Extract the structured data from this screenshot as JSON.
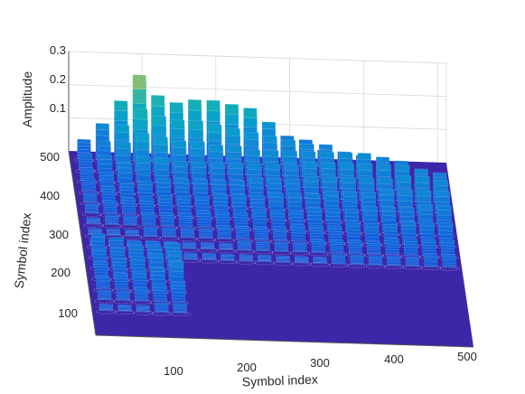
{
  "chart_data": {
    "type": "surface3d",
    "title": "",
    "xlabel": "Symbol index",
    "ylabel": "Symbol index",
    "zlabel": "Amplitude",
    "x_ticks": [
      "100",
      "200",
      "300",
      "400",
      "500"
    ],
    "y_ticks": [
      "100",
      "200",
      "300",
      "400",
      "500"
    ],
    "z_ticks": [
      "0.1",
      "0.2",
      "0.3"
    ],
    "xlim": [
      1,
      512
    ],
    "ylim": [
      1,
      512
    ],
    "zlim": [
      0,
      0.3
    ],
    "grid": true,
    "colormap": "parula",
    "block_grid": {
      "columns": [
        20,
        45,
        70,
        95,
        120,
        145,
        170,
        195,
        220,
        245,
        270,
        295,
        320,
        345,
        370,
        395,
        420,
        445,
        470,
        495
      ],
      "rows": [
        490,
        460,
        430,
        400,
        370,
        340,
        310,
        280,
        250,
        220,
        190,
        160,
        130,
        100,
        70
      ]
    },
    "blocks": [
      {
        "x": 20,
        "y": 490,
        "z": 0.06
      },
      {
        "x": 45,
        "y": 490,
        "z": 0.11
      },
      {
        "x": 70,
        "y": 490,
        "z": 0.18
      },
      {
        "x": 95,
        "y": 490,
        "z": 0.26
      },
      {
        "x": 120,
        "y": 490,
        "z": 0.2
      },
      {
        "x": 145,
        "y": 490,
        "z": 0.18
      },
      {
        "x": 170,
        "y": 490,
        "z": 0.19
      },
      {
        "x": 195,
        "y": 490,
        "z": 0.19
      },
      {
        "x": 220,
        "y": 490,
        "z": 0.18
      },
      {
        "x": 245,
        "y": 490,
        "z": 0.17
      },
      {
        "x": 270,
        "y": 490,
        "z": 0.13
      },
      {
        "x": 295,
        "y": 490,
        "z": 0.09
      },
      {
        "x": 320,
        "y": 490,
        "z": 0.08
      },
      {
        "x": 345,
        "y": 490,
        "z": 0.05
      },
      {
        "x": 20,
        "y": 460,
        "z": 0.05
      },
      {
        "x": 45,
        "y": 460,
        "z": 0.09
      },
      {
        "x": 70,
        "y": 460,
        "z": 0.14
      },
      {
        "x": 95,
        "y": 460,
        "z": 0.19
      },
      {
        "x": 120,
        "y": 460,
        "z": 0.17
      },
      {
        "x": 145,
        "y": 460,
        "z": 0.16
      },
      {
        "x": 170,
        "y": 460,
        "z": 0.16
      },
      {
        "x": 195,
        "y": 460,
        "z": 0.15
      },
      {
        "x": 220,
        "y": 460,
        "z": 0.14
      },
      {
        "x": 245,
        "y": 460,
        "z": 0.13
      },
      {
        "x": 270,
        "y": 460,
        "z": 0.12
      },
      {
        "x": 295,
        "y": 460,
        "z": 0.11
      },
      {
        "x": 320,
        "y": 460,
        "z": 0.1
      },
      {
        "x": 345,
        "y": 460,
        "z": 0.1
      },
      {
        "x": 370,
        "y": 460,
        "z": 0.08
      },
      {
        "x": 395,
        "y": 460,
        "z": 0.07
      },
      {
        "x": 20,
        "y": 430,
        "z": 0.04
      },
      {
        "x": 45,
        "y": 430,
        "z": 0.08
      },
      {
        "x": 70,
        "y": 430,
        "z": 0.12
      },
      {
        "x": 95,
        "y": 430,
        "z": 0.15
      },
      {
        "x": 120,
        "y": 430,
        "z": 0.14
      },
      {
        "x": 145,
        "y": 430,
        "z": 0.13
      },
      {
        "x": 170,
        "y": 430,
        "z": 0.13
      },
      {
        "x": 195,
        "y": 430,
        "z": 0.12
      },
      {
        "x": 220,
        "y": 430,
        "z": 0.12
      },
      {
        "x": 245,
        "y": 430,
        "z": 0.11
      },
      {
        "x": 270,
        "y": 430,
        "z": 0.11
      },
      {
        "x": 295,
        "y": 430,
        "z": 0.11
      },
      {
        "x": 320,
        "y": 430,
        "z": 0.11
      },
      {
        "x": 345,
        "y": 430,
        "z": 0.11
      },
      {
        "x": 370,
        "y": 430,
        "z": 0.11
      },
      {
        "x": 395,
        "y": 430,
        "z": 0.11
      },
      {
        "x": 420,
        "y": 430,
        "z": 0.1
      },
      {
        "x": 445,
        "y": 430,
        "z": 0.09
      },
      {
        "x": 20,
        "y": 400,
        "z": 0.04
      },
      {
        "x": 45,
        "y": 400,
        "z": 0.06
      },
      {
        "x": 70,
        "y": 400,
        "z": 0.09
      },
      {
        "x": 95,
        "y": 400,
        "z": 0.11
      },
      {
        "x": 120,
        "y": 400,
        "z": 0.11
      },
      {
        "x": 145,
        "y": 400,
        "z": 0.1
      },
      {
        "x": 170,
        "y": 400,
        "z": 0.1
      },
      {
        "x": 195,
        "y": 400,
        "z": 0.1
      },
      {
        "x": 220,
        "y": 400,
        "z": 0.1
      },
      {
        "x": 245,
        "y": 400,
        "z": 0.1
      },
      {
        "x": 270,
        "y": 400,
        "z": 0.1
      },
      {
        "x": 295,
        "y": 400,
        "z": 0.1
      },
      {
        "x": 320,
        "y": 400,
        "z": 0.11
      },
      {
        "x": 345,
        "y": 400,
        "z": 0.11
      },
      {
        "x": 370,
        "y": 400,
        "z": 0.11
      },
      {
        "x": 395,
        "y": 400,
        "z": 0.11
      },
      {
        "x": 420,
        "y": 400,
        "z": 0.11
      },
      {
        "x": 445,
        "y": 400,
        "z": 0.11
      },
      {
        "x": 470,
        "y": 400,
        "z": 0.1
      },
      {
        "x": 495,
        "y": 400,
        "z": 0.09
      },
      {
        "x": 20,
        "y": 370,
        "z": 0.03
      },
      {
        "x": 45,
        "y": 370,
        "z": 0.05
      },
      {
        "x": 70,
        "y": 370,
        "z": 0.06
      },
      {
        "x": 95,
        "y": 370,
        "z": 0.07
      },
      {
        "x": 120,
        "y": 370,
        "z": 0.08
      },
      {
        "x": 145,
        "y": 370,
        "z": 0.08
      },
      {
        "x": 170,
        "y": 370,
        "z": 0.08
      },
      {
        "x": 195,
        "y": 370,
        "z": 0.08
      },
      {
        "x": 220,
        "y": 370,
        "z": 0.08
      },
      {
        "x": 245,
        "y": 370,
        "z": 0.09
      },
      {
        "x": 270,
        "y": 370,
        "z": 0.09
      },
      {
        "x": 295,
        "y": 370,
        "z": 0.09
      },
      {
        "x": 320,
        "y": 370,
        "z": 0.1
      },
      {
        "x": 345,
        "y": 370,
        "z": 0.1
      },
      {
        "x": 370,
        "y": 370,
        "z": 0.1
      },
      {
        "x": 395,
        "y": 370,
        "z": 0.1
      },
      {
        "x": 420,
        "y": 370,
        "z": 0.1
      },
      {
        "x": 445,
        "y": 370,
        "z": 0.11
      },
      {
        "x": 470,
        "y": 370,
        "z": 0.11
      },
      {
        "x": 495,
        "y": 370,
        "z": 0.1
      },
      {
        "x": 20,
        "y": 340,
        "z": 0.03
      },
      {
        "x": 45,
        "y": 340,
        "z": 0.04
      },
      {
        "x": 70,
        "y": 340,
        "z": 0.05
      },
      {
        "x": 95,
        "y": 340,
        "z": 0.05
      },
      {
        "x": 120,
        "y": 340,
        "z": 0.06
      },
      {
        "x": 145,
        "y": 340,
        "z": 0.06
      },
      {
        "x": 170,
        "y": 340,
        "z": 0.06
      },
      {
        "x": 195,
        "y": 340,
        "z": 0.07
      },
      {
        "x": 220,
        "y": 340,
        "z": 0.07
      },
      {
        "x": 245,
        "y": 340,
        "z": 0.07
      },
      {
        "x": 270,
        "y": 340,
        "z": 0.08
      },
      {
        "x": 295,
        "y": 340,
        "z": 0.08
      },
      {
        "x": 320,
        "y": 340,
        "z": 0.08
      },
      {
        "x": 345,
        "y": 340,
        "z": 0.09
      },
      {
        "x": 370,
        "y": 340,
        "z": 0.09
      },
      {
        "x": 395,
        "y": 340,
        "z": 0.09
      },
      {
        "x": 420,
        "y": 340,
        "z": 0.1
      },
      {
        "x": 445,
        "y": 340,
        "z": 0.1
      },
      {
        "x": 470,
        "y": 340,
        "z": 0.1
      },
      {
        "x": 495,
        "y": 340,
        "z": 0.1
      },
      {
        "x": 20,
        "y": 310,
        "z": 0.02
      },
      {
        "x": 45,
        "y": 310,
        "z": 0.03
      },
      {
        "x": 70,
        "y": 310,
        "z": 0.03
      },
      {
        "x": 95,
        "y": 310,
        "z": 0.04
      },
      {
        "x": 120,
        "y": 310,
        "z": 0.04
      },
      {
        "x": 145,
        "y": 310,
        "z": 0.04
      },
      {
        "x": 170,
        "y": 310,
        "z": 0.05
      },
      {
        "x": 195,
        "y": 310,
        "z": 0.05
      },
      {
        "x": 220,
        "y": 310,
        "z": 0.05
      },
      {
        "x": 245,
        "y": 310,
        "z": 0.06
      },
      {
        "x": 270,
        "y": 310,
        "z": 0.06
      },
      {
        "x": 295,
        "y": 310,
        "z": 0.06
      },
      {
        "x": 320,
        "y": 310,
        "z": 0.07
      },
      {
        "x": 345,
        "y": 310,
        "z": 0.07
      },
      {
        "x": 370,
        "y": 310,
        "z": 0.07
      },
      {
        "x": 395,
        "y": 310,
        "z": 0.08
      },
      {
        "x": 420,
        "y": 310,
        "z": 0.08
      },
      {
        "x": 445,
        "y": 310,
        "z": 0.08
      },
      {
        "x": 470,
        "y": 310,
        "z": 0.09
      },
      {
        "x": 495,
        "y": 310,
        "z": 0.09
      },
      {
        "x": 20,
        "y": 280,
        "z": 0.02
      },
      {
        "x": 45,
        "y": 280,
        "z": 0.02
      },
      {
        "x": 70,
        "y": 280,
        "z": 0.02
      },
      {
        "x": 95,
        "y": 280,
        "z": 0.03
      },
      {
        "x": 120,
        "y": 280,
        "z": 0.03
      },
      {
        "x": 145,
        "y": 280,
        "z": 0.03
      },
      {
        "x": 170,
        "y": 280,
        "z": 0.03
      },
      {
        "x": 195,
        "y": 280,
        "z": 0.04
      },
      {
        "x": 220,
        "y": 280,
        "z": 0.04
      },
      {
        "x": 245,
        "y": 280,
        "z": 0.04
      },
      {
        "x": 270,
        "y": 280,
        "z": 0.04
      },
      {
        "x": 295,
        "y": 280,
        "z": 0.05
      },
      {
        "x": 320,
        "y": 280,
        "z": 0.05
      },
      {
        "x": 345,
        "y": 280,
        "z": 0.05
      },
      {
        "x": 370,
        "y": 280,
        "z": 0.06
      },
      {
        "x": 395,
        "y": 280,
        "z": 0.06
      },
      {
        "x": 420,
        "y": 280,
        "z": 0.06
      },
      {
        "x": 445,
        "y": 280,
        "z": 0.07
      },
      {
        "x": 470,
        "y": 280,
        "z": 0.07
      },
      {
        "x": 495,
        "y": 280,
        "z": 0.07
      },
      {
        "x": 20,
        "y": 250,
        "z": 0.02
      },
      {
        "x": 45,
        "y": 250,
        "z": 0.02
      },
      {
        "x": 70,
        "y": 250,
        "z": 0.02
      },
      {
        "x": 95,
        "y": 250,
        "z": 0.02
      },
      {
        "x": 120,
        "y": 250,
        "z": 0.02
      },
      {
        "x": 145,
        "y": 250,
        "z": 0.02
      },
      {
        "x": 170,
        "y": 250,
        "z": 0.02
      },
      {
        "x": 195,
        "y": 250,
        "z": 0.02
      },
      {
        "x": 220,
        "y": 250,
        "z": 0.03
      },
      {
        "x": 245,
        "y": 250,
        "z": 0.03
      },
      {
        "x": 270,
        "y": 250,
        "z": 0.03
      },
      {
        "x": 295,
        "y": 250,
        "z": 0.03
      },
      {
        "x": 320,
        "y": 250,
        "z": 0.04
      },
      {
        "x": 345,
        "y": 250,
        "z": 0.04
      },
      {
        "x": 370,
        "y": 250,
        "z": 0.04
      },
      {
        "x": 395,
        "y": 250,
        "z": 0.04
      },
      {
        "x": 420,
        "y": 250,
        "z": 0.05
      },
      {
        "x": 445,
        "y": 250,
        "z": 0.05
      },
      {
        "x": 470,
        "y": 250,
        "z": 0.05
      },
      {
        "x": 495,
        "y": 250,
        "z": 0.05
      },
      {
        "x": 20,
        "y": 220,
        "z": 0.07
      },
      {
        "x": 45,
        "y": 220,
        "z": 0.06
      },
      {
        "x": 70,
        "y": 220,
        "z": 0.05
      },
      {
        "x": 95,
        "y": 220,
        "z": 0.05
      },
      {
        "x": 120,
        "y": 220,
        "z": 0.05
      },
      {
        "x": 145,
        "y": 220,
        "z": 0.02
      },
      {
        "x": 170,
        "y": 220,
        "z": 0.02
      },
      {
        "x": 195,
        "y": 220,
        "z": 0.02
      },
      {
        "x": 220,
        "y": 220,
        "z": 0.02
      },
      {
        "x": 245,
        "y": 220,
        "z": 0.02
      },
      {
        "x": 270,
        "y": 220,
        "z": 0.02
      },
      {
        "x": 295,
        "y": 220,
        "z": 0.02
      },
      {
        "x": 320,
        "y": 220,
        "z": 0.02
      },
      {
        "x": 345,
        "y": 220,
        "z": 0.03
      },
      {
        "x": 370,
        "y": 220,
        "z": 0.03
      },
      {
        "x": 395,
        "y": 220,
        "z": 0.03
      },
      {
        "x": 420,
        "y": 220,
        "z": 0.03
      },
      {
        "x": 445,
        "y": 220,
        "z": 0.03
      },
      {
        "x": 470,
        "y": 220,
        "z": 0.04
      },
      {
        "x": 495,
        "y": 220,
        "z": 0.04
      },
      {
        "x": 20,
        "y": 190,
        "z": 0.06
      },
      {
        "x": 45,
        "y": 190,
        "z": 0.06
      },
      {
        "x": 70,
        "y": 190,
        "z": 0.07
      },
      {
        "x": 95,
        "y": 190,
        "z": 0.07
      },
      {
        "x": 120,
        "y": 190,
        "z": 0.08
      },
      {
        "x": 20,
        "y": 160,
        "z": 0.05
      },
      {
        "x": 45,
        "y": 160,
        "z": 0.06
      },
      {
        "x": 70,
        "y": 160,
        "z": 0.07
      },
      {
        "x": 95,
        "y": 160,
        "z": 0.08
      },
      {
        "x": 120,
        "y": 160,
        "z": 0.09
      },
      {
        "x": 20,
        "y": 130,
        "z": 0.04
      },
      {
        "x": 45,
        "y": 130,
        "z": 0.05
      },
      {
        "x": 70,
        "y": 130,
        "z": 0.06
      },
      {
        "x": 95,
        "y": 130,
        "z": 0.07
      },
      {
        "x": 120,
        "y": 130,
        "z": 0.09
      },
      {
        "x": 20,
        "y": 100,
        "z": 0.03
      },
      {
        "x": 45,
        "y": 100,
        "z": 0.03
      },
      {
        "x": 70,
        "y": 100,
        "z": 0.04
      },
      {
        "x": 95,
        "y": 100,
        "z": 0.05
      },
      {
        "x": 120,
        "y": 100,
        "z": 0.06
      },
      {
        "x": 20,
        "y": 70,
        "z": 0.02
      },
      {
        "x": 45,
        "y": 70,
        "z": 0.02
      },
      {
        "x": 70,
        "y": 70,
        "z": 0.02
      },
      {
        "x": 95,
        "y": 70,
        "z": 0.03
      },
      {
        "x": 120,
        "y": 70,
        "z": 0.03
      }
    ],
    "colors": {
      "floor": "#3e26a8",
      "background": "#ffffff",
      "grid": "#d9d9d9",
      "axis": "#555555",
      "text": "#262626"
    }
  }
}
